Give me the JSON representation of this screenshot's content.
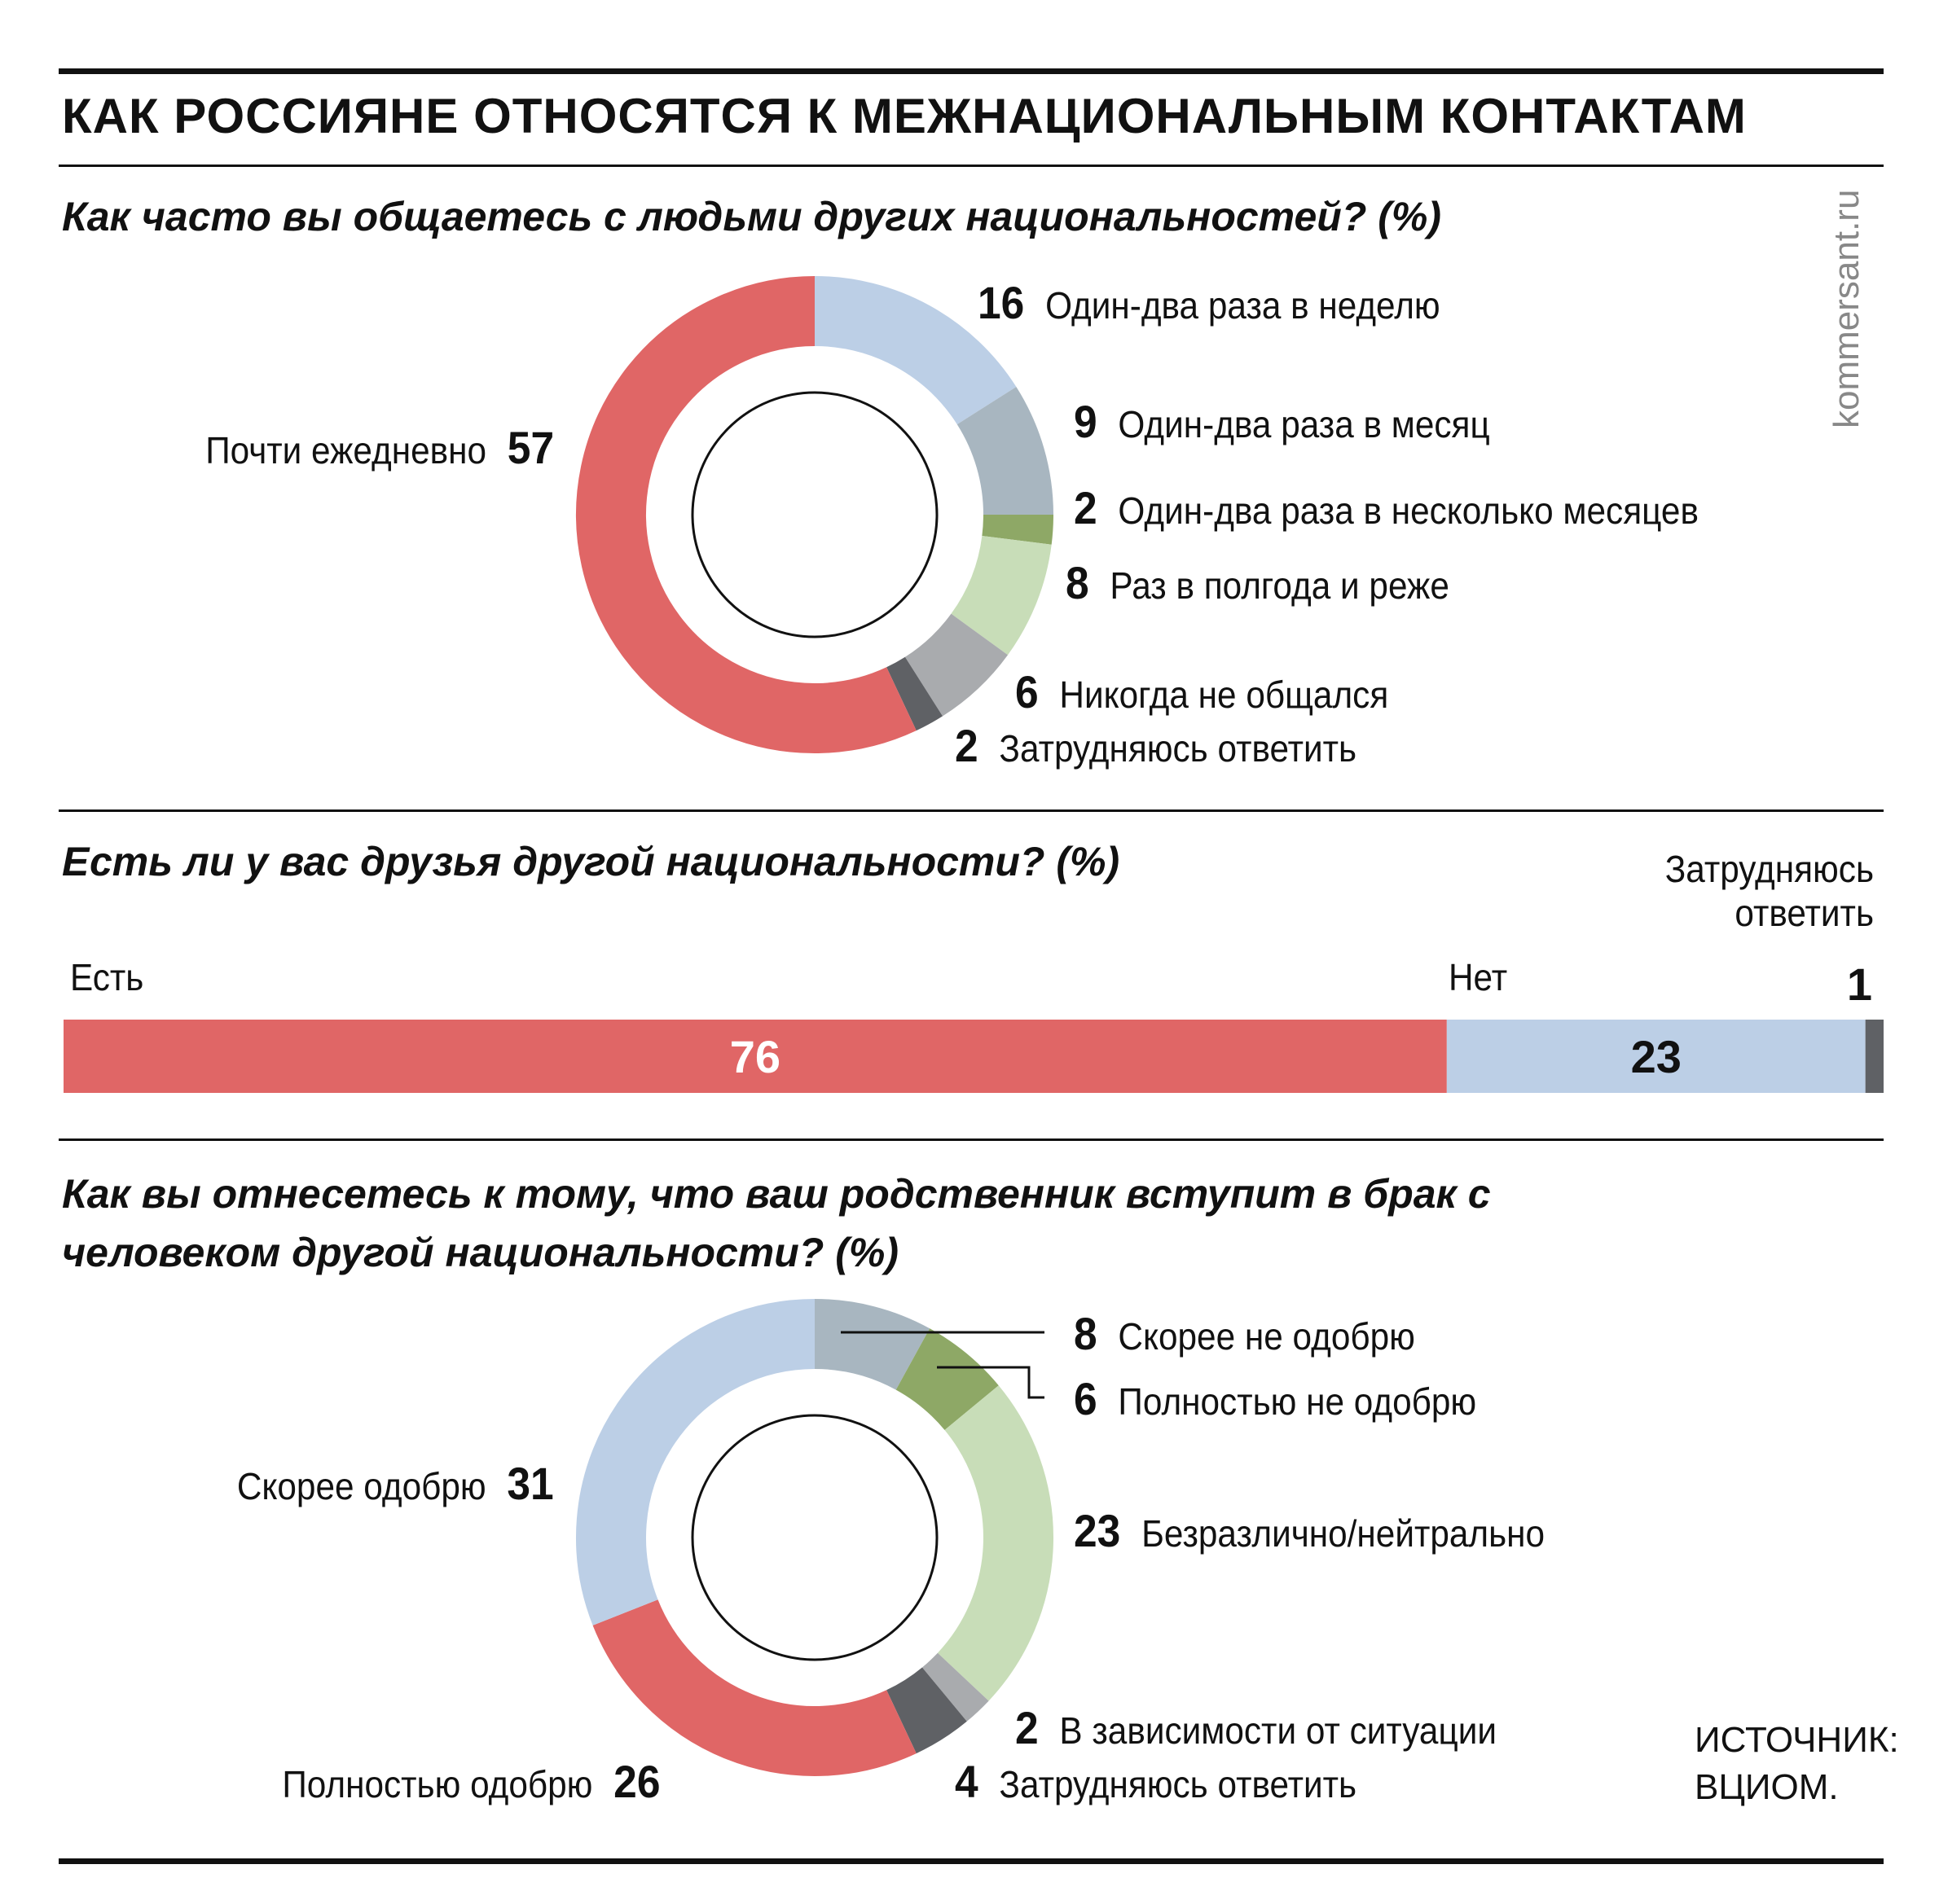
{
  "title": "КАК РОССИЯНЕ ОТНОСЯТСЯ К МЕЖНАЦИОНАЛЬНЫМ КОНТАКТАМ",
  "watermark": "kommersant.ru",
  "source": "ИСТОЧНИК:\nВЦИОМ.",
  "colors": {
    "red": "#e06666",
    "light_blue": "#bccfe6",
    "blue_gray": "#a8b6c0",
    "green": "#8ea866",
    "light_green": "#c8ddb8",
    "gray": "#a9abae",
    "dark_gray": "#5f6165"
  },
  "chart_data": [
    {
      "type": "pie",
      "title": "Как часто вы общаетесь с людьми других национальностей? (%)",
      "slices": [
        {
          "label": "Один-два раза в неделю",
          "value": 16,
          "color": "#bccfe6"
        },
        {
          "label": "Один-два раза в месяц",
          "value": 9,
          "color": "#a8b6c0"
        },
        {
          "label": "Один-два раза в несколько месяцев",
          "value": 2,
          "color": "#8ea866"
        },
        {
          "label": "Раз в полгода и реже",
          "value": 8,
          "color": "#c8ddb8"
        },
        {
          "label": "Никогда не общался",
          "value": 6,
          "color": "#a9abae"
        },
        {
          "label": "Затрудняюсь ответить",
          "value": 2,
          "color": "#5f6165"
        },
        {
          "label": "Почти ежедневно",
          "value": 57,
          "color": "#e06666"
        }
      ]
    },
    {
      "type": "bar",
      "title": "Есть ли у вас друзья другой национальности? (%)",
      "categories": [
        "Есть",
        "Нет",
        "Затрудняюсь ответить"
      ],
      "values": [
        76,
        23,
        1
      ],
      "colors": [
        "#e06666",
        "#bccfe6",
        "#5f6165"
      ]
    },
    {
      "type": "pie",
      "title": "Как вы отнесетесь к тому, что ваш родственник вступит в брак с человеком другой национальности? (%)",
      "slices": [
        {
          "label": "Скорее не одобрю",
          "value": 8,
          "color": "#a8b6c0"
        },
        {
          "label": "Полностью не одобрю",
          "value": 6,
          "color": "#8ea866"
        },
        {
          "label": "Безразлично/нейтрально",
          "value": 23,
          "color": "#c8ddb8"
        },
        {
          "label": "В зависимости от ситуации",
          "value": 2,
          "color": "#a9abae"
        },
        {
          "label": "Затрудняюсь ответить",
          "value": 4,
          "color": "#5f6165"
        },
        {
          "label": "Полностью одобрю",
          "value": 26,
          "color": "#e06666"
        },
        {
          "label": "Скорее одобрю",
          "value": 31,
          "color": "#bccfe6"
        }
      ]
    }
  ]
}
